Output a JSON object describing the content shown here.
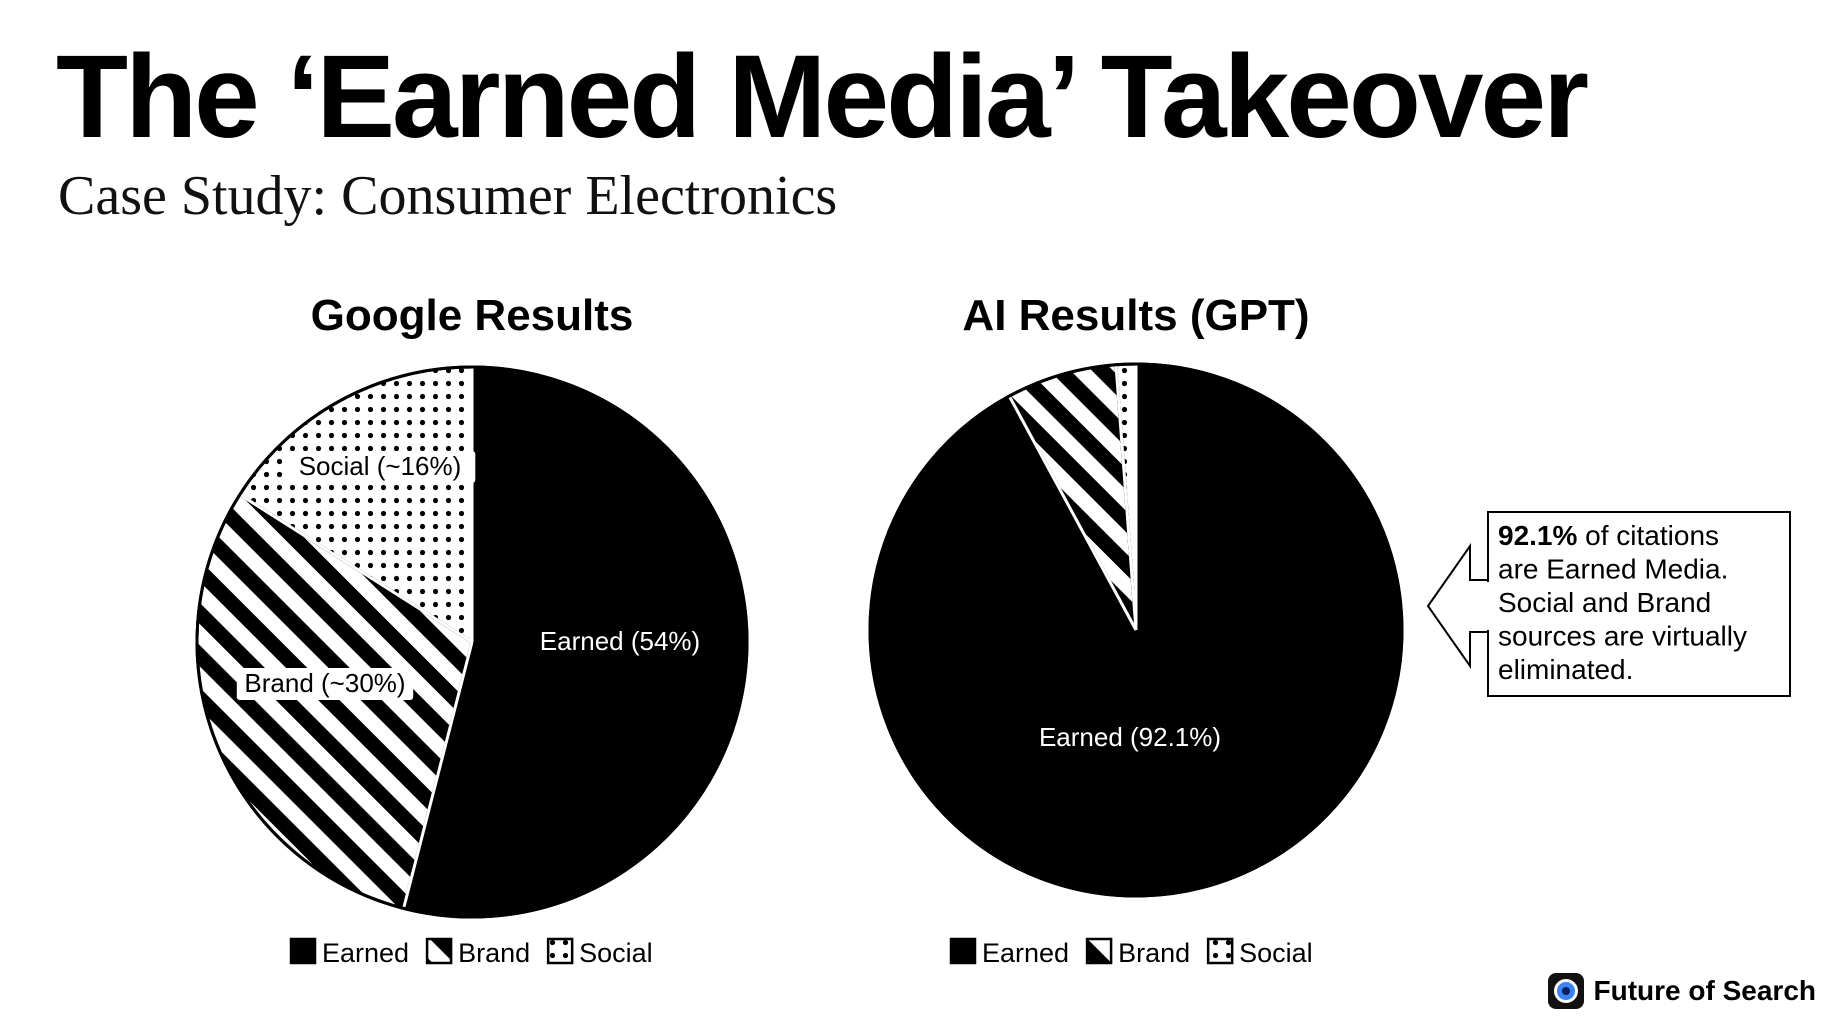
{
  "header": {
    "title": "The ‘Earned Media’ Takeover",
    "subtitle": "Case Study: Consumer Electronics"
  },
  "colors": {
    "earned": "#000000",
    "background": "#ffffff",
    "brand_logo_accent": "#3b82f6"
  },
  "chart_data": [
    {
      "type": "pie",
      "title": "Google Results",
      "categories": [
        "Earned",
        "Brand",
        "Social"
      ],
      "values": [
        54,
        30,
        16
      ],
      "patterns": [
        "solid",
        "stripes",
        "dots"
      ],
      "slice_labels": [
        "Earned (54%)",
        "Brand (~30%)",
        "Social (~16%)"
      ],
      "legend": {
        "position": "bottom",
        "entries": [
          "Earned",
          "Brand",
          "Social"
        ]
      }
    },
    {
      "type": "pie",
      "title": "AI Results (GPT)",
      "categories": [
        "Earned",
        "Brand",
        "Social"
      ],
      "values": [
        92.1,
        6.7,
        1.2
      ],
      "patterns": [
        "solid",
        "stripes",
        "dots"
      ],
      "slice_labels": [
        "Earned (92.1%)",
        "",
        ""
      ],
      "legend": {
        "position": "bottom",
        "entries": [
          "Earned",
          "Brand",
          "Social"
        ]
      },
      "annotation": {
        "bold_lead": "92.1%",
        "lines": [
          "of citations",
          "are Earned Media.",
          "Social and Brand",
          "sources are virtually",
          "eliminated."
        ]
      }
    }
  ],
  "footer": {
    "brand_name": "Future of Search",
    "brand_icon": "search-eye-icon"
  }
}
